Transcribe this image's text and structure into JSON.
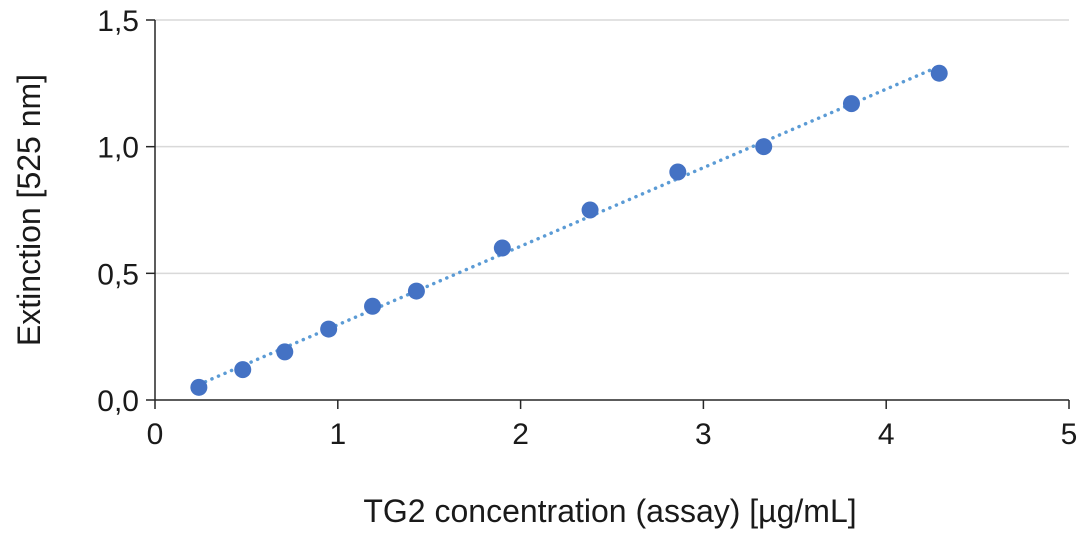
{
  "chart_data": {
    "type": "scatter",
    "xlabel": "TG2 concentration (assay) [µg/mL]",
    "ylabel": "Extinction [525 nm]",
    "xlim": [
      0,
      5
    ],
    "ylim": [
      0,
      1.5
    ],
    "x_ticks": [
      "0",
      "1",
      "2",
      "3",
      "4",
      "5"
    ],
    "y_ticks": [
      "0,0",
      "0,5",
      "1,0",
      "1,5"
    ],
    "grid": "horizontal",
    "legend": "none",
    "colors": {
      "points": "#4472C4",
      "trendline": "#5B9BD5",
      "grid": "#d9d9d9",
      "axis": "#262626"
    },
    "series": [
      {
        "x": [
          0.24,
          0.48,
          0.71,
          0.95,
          1.19,
          1.43,
          1.9,
          2.38,
          2.86,
          3.33,
          3.81,
          4.29
        ],
        "y": [
          0.05,
          0.12,
          0.19,
          0.28,
          0.37,
          0.43,
          0.6,
          0.75,
          0.9,
          1.0,
          1.17,
          1.29
        ]
      }
    ],
    "trendline": {
      "type": "linear",
      "style": "dotted"
    }
  }
}
